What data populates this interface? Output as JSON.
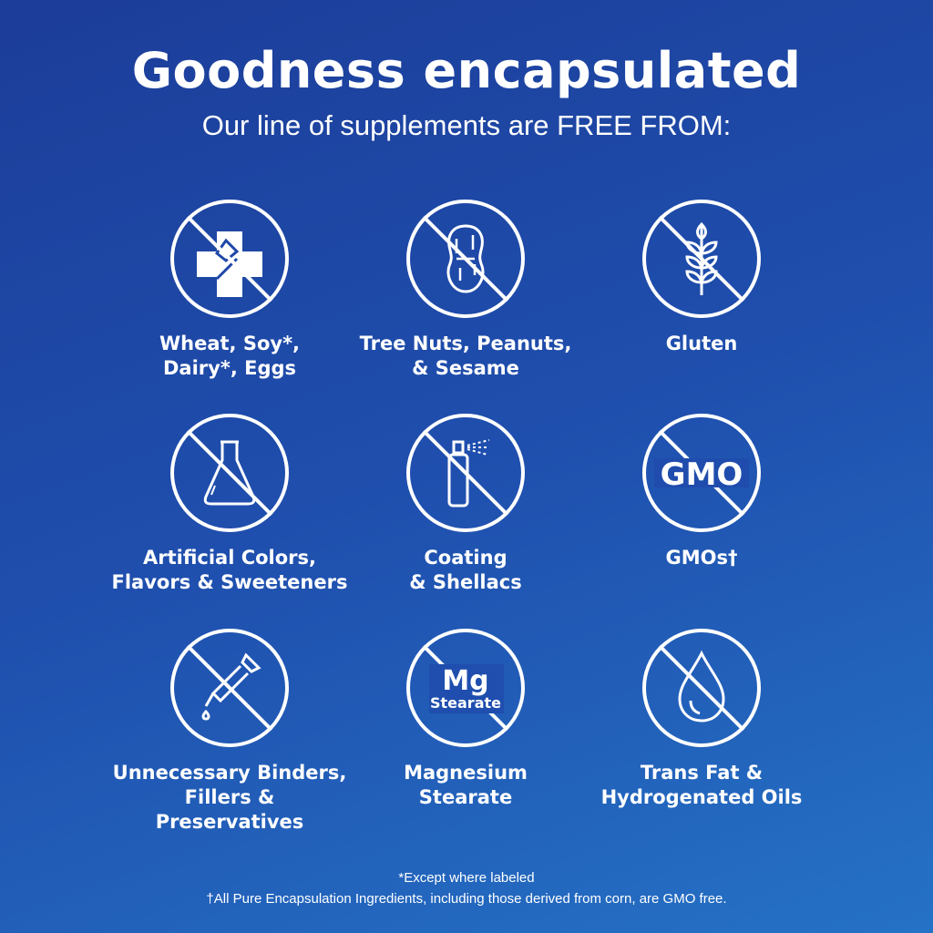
{
  "header": {
    "title": "Goodness encapsulated",
    "subtitle": "Our line of supplements are FREE FROM:"
  },
  "items": [
    {
      "icon": "no-allergen-fork-icon",
      "line1": "Wheat, Soy*,",
      "line2": "Dairy*, Eggs"
    },
    {
      "icon": "no-peanut-icon",
      "line1": "Tree Nuts, Peanuts,",
      "line2": "& Sesame"
    },
    {
      "icon": "no-wheat-icon",
      "line1": "Gluten",
      "line2": ""
    },
    {
      "icon": "no-flask-icon",
      "line1": "Artificial Colors,",
      "line2": "Flavors & Sweeteners"
    },
    {
      "icon": "no-spray-icon",
      "line1": "Coating",
      "line2": "& Shellacs"
    },
    {
      "icon": "no-gmo-icon",
      "icon_text": "GMO",
      "line1": "GMOs†",
      "line2": ""
    },
    {
      "icon": "no-dropper-icon",
      "line1": "Unnecessary Binders,",
      "line2": "Fillers & Preservatives"
    },
    {
      "icon": "no-mg-stearate-icon",
      "icon_text": "Mg",
      "icon_subtext": "Stearate",
      "line1": "Magnesium",
      "line2": "Stearate"
    },
    {
      "icon": "no-oil-drop-icon",
      "line1": "Trans Fat &",
      "line2": "Hydrogenated Oils"
    }
  ],
  "footer": {
    "note1": "*Except where labeled",
    "note2": "†All Pure Encapsulation Ingredients, including those derived from corn, are GMO free."
  },
  "colors": {
    "background_start": "#1c3d99",
    "background_end": "#2572c6",
    "foreground": "#ffffff"
  }
}
